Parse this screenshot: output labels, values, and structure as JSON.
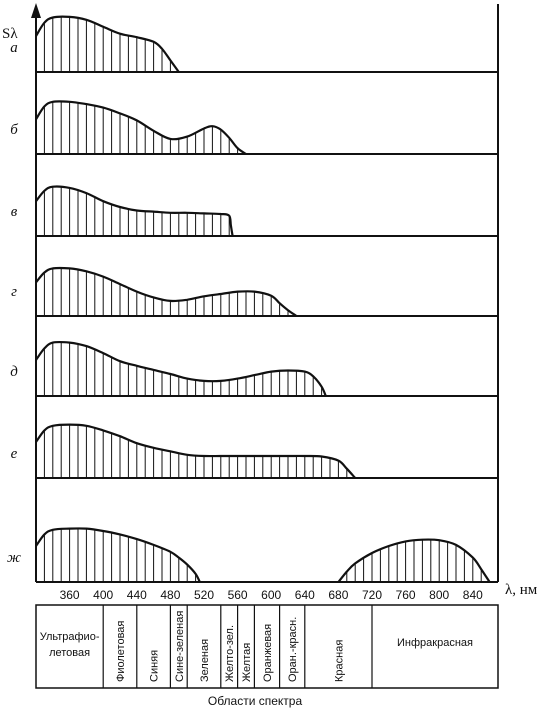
{
  "chart_data": {
    "type": "area",
    "y_axis_label": "Sλ",
    "x_axis_label": "λ, нм",
    "x_ticks": [
      360,
      400,
      440,
      480,
      520,
      560,
      600,
      640,
      680,
      720,
      760,
      800,
      840
    ],
    "regions_caption": "Области спектра",
    "regions": [
      {
        "name": "Ультрафио-летовая",
        "from": 320,
        "to": 400,
        "vertical": false
      },
      {
        "name": "Фиолетовая",
        "from": 400,
        "to": 440,
        "vertical": true
      },
      {
        "name": "Синяя",
        "from": 440,
        "to": 480,
        "vertical": true
      },
      {
        "name": "Сине-зеленая",
        "from": 480,
        "to": 500,
        "vertical": true
      },
      {
        "name": "Зеленая",
        "from": 500,
        "to": 540,
        "vertical": true
      },
      {
        "name": "Желто-зел.",
        "from": 540,
        "to": 560,
        "vertical": true
      },
      {
        "name": "Желтая",
        "from": 560,
        "to": 580,
        "vertical": true
      },
      {
        "name": "Оранжевая",
        "from": 580,
        "to": 610,
        "vertical": true
      },
      {
        "name": "Оран.-красн.",
        "from": 610,
        "to": 640,
        "vertical": true
      },
      {
        "name": "Красная",
        "from": 640,
        "to": 720,
        "vertical": true
      },
      {
        "name": "Инфракрасная",
        "from": 720,
        "to": 870,
        "vertical": false
      }
    ],
    "series": [
      {
        "name": "а",
        "x": [
          320,
          330,
          340,
          360,
          380,
          400,
          420,
          440,
          460,
          470,
          480,
          490
        ],
        "y": [
          0.62,
          0.85,
          0.94,
          0.95,
          0.9,
          0.78,
          0.66,
          0.6,
          0.52,
          0.4,
          0.2,
          0
        ]
      },
      {
        "name": "б",
        "x": [
          320,
          330,
          340,
          360,
          380,
          400,
          420,
          440,
          460,
          480,
          500,
          520,
          530,
          540,
          550,
          560,
          570
        ],
        "y": [
          0.6,
          0.82,
          0.9,
          0.9,
          0.86,
          0.8,
          0.7,
          0.58,
          0.4,
          0.26,
          0.3,
          0.44,
          0.48,
          0.42,
          0.28,
          0.1,
          0
        ]
      },
      {
        "name": "в",
        "x": [
          320,
          330,
          340,
          360,
          380,
          400,
          420,
          440,
          460,
          480,
          500,
          520,
          540,
          550,
          552,
          554
        ],
        "y": [
          0.6,
          0.78,
          0.85,
          0.83,
          0.74,
          0.6,
          0.5,
          0.44,
          0.42,
          0.4,
          0.4,
          0.39,
          0.38,
          0.35,
          0.18,
          0
        ]
      },
      {
        "name": "г",
        "x": [
          320,
          330,
          340,
          360,
          380,
          400,
          420,
          440,
          460,
          480,
          500,
          520,
          540,
          560,
          580,
          600,
          610,
          620,
          630
        ],
        "y": [
          0.58,
          0.75,
          0.82,
          0.82,
          0.77,
          0.68,
          0.55,
          0.42,
          0.32,
          0.26,
          0.28,
          0.34,
          0.38,
          0.42,
          0.42,
          0.35,
          0.22,
          0.1,
          0
        ]
      },
      {
        "name": "д",
        "x": [
          320,
          330,
          340,
          360,
          380,
          400,
          420,
          440,
          460,
          480,
          500,
          520,
          540,
          560,
          580,
          600,
          620,
          640,
          650,
          660,
          665
        ],
        "y": [
          0.62,
          0.82,
          0.92,
          0.92,
          0.86,
          0.74,
          0.6,
          0.52,
          0.45,
          0.38,
          0.3,
          0.26,
          0.26,
          0.3,
          0.36,
          0.42,
          0.44,
          0.42,
          0.34,
          0.16,
          0
        ]
      },
      {
        "name": "е",
        "x": [
          320,
          330,
          340,
          360,
          380,
          400,
          420,
          440,
          460,
          480,
          500,
          520,
          540,
          560,
          580,
          600,
          620,
          640,
          660,
          680,
          690,
          700
        ],
        "y": [
          0.62,
          0.82,
          0.9,
          0.92,
          0.9,
          0.82,
          0.72,
          0.6,
          0.52,
          0.46,
          0.4,
          0.38,
          0.38,
          0.38,
          0.38,
          0.38,
          0.38,
          0.38,
          0.37,
          0.3,
          0.16,
          0
        ]
      },
      {
        "name": "ж",
        "x": [
          320,
          330,
          340,
          360,
          380,
          400,
          420,
          440,
          460,
          480,
          490,
          500,
          510,
          515
        ],
        "y": [
          0.62,
          0.82,
          0.9,
          0.92,
          0.92,
          0.88,
          0.82,
          0.74,
          0.64,
          0.52,
          0.42,
          0.3,
          0.14,
          0
        ]
      },
      {
        "name": "ж",
        "x": [
          680,
          690,
          700,
          720,
          740,
          760,
          780,
          800,
          820,
          840,
          850,
          860
        ],
        "y": [
          0,
          0.18,
          0.32,
          0.5,
          0.62,
          0.7,
          0.73,
          0.72,
          0.64,
          0.42,
          0.22,
          0
        ]
      }
    ]
  }
}
